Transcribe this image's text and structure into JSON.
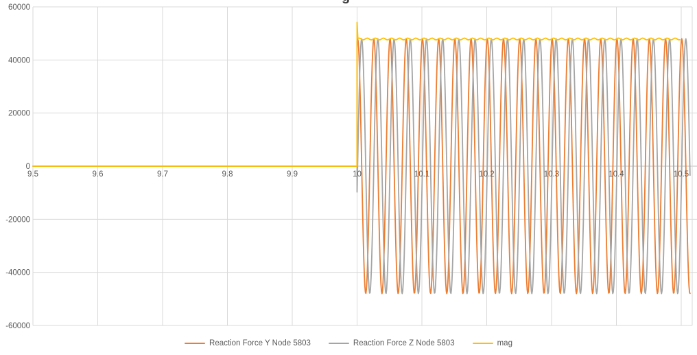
{
  "chart": {
    "title_cropped_glyph": "g",
    "left_edge_cropped_glyph": "0",
    "grid_color": "#d9d9d9",
    "label_color": "#595959",
    "background": "#ffffff"
  },
  "chart_data": {
    "type": "line",
    "title": "",
    "xlabel": "",
    "ylabel": "",
    "legend_position": "bottom",
    "grid": true,
    "x_axis": {
      "min": 9.5,
      "max": 10.5,
      "tick_step": 0.1,
      "tick_labels": [
        "9.5",
        "9.6",
        "9.7",
        "9.8",
        "9.9",
        "10",
        "10.1",
        "10.2",
        "10.3",
        "10.4",
        "10.5"
      ]
    },
    "y_axis": {
      "min": -60000,
      "max": 60000,
      "tick_step": 20000,
      "tick_labels": [
        "60000",
        "40000",
        "20000",
        "0",
        "-20000",
        "-40000",
        "-60000"
      ],
      "tick_values": [
        60000,
        40000,
        20000,
        0,
        -20000,
        -40000,
        -60000
      ]
    },
    "series": [
      {
        "name": "Reaction Force Y Node 5803",
        "color": "#ED7D31",
        "flat": {
          "x_start": 9.5,
          "x_end": 10,
          "value": 0
        },
        "oscillation": {
          "x_start": 10,
          "x_end": 10.514,
          "amplitude": 48000,
          "frequency_cycles_per_unit": 40,
          "phase_rad": 1.35
        }
      },
      {
        "name": "Reaction Force Z Node 5803",
        "color": "#A5A5A5",
        "flat": {
          "x_start": 9.5,
          "x_end": 10,
          "value": 0
        },
        "oscillation": {
          "x_start": 10,
          "x_end": 10.514,
          "amplitude": 48000,
          "frequency_cycles_per_unit": 40,
          "phase_rad": -0.205
        }
      },
      {
        "name": "mag",
        "color": "#FFC000",
        "flat": {
          "x_start": 9.5,
          "x_end": 10,
          "value": 0
        },
        "spike": {
          "x": 10,
          "value": 54200
        },
        "steady": {
          "x_start": 10,
          "x_end": 10.5,
          "value": 47900,
          "ripple_amplitude": 350,
          "ripple_cycles_per_unit": 80
        }
      }
    ]
  }
}
